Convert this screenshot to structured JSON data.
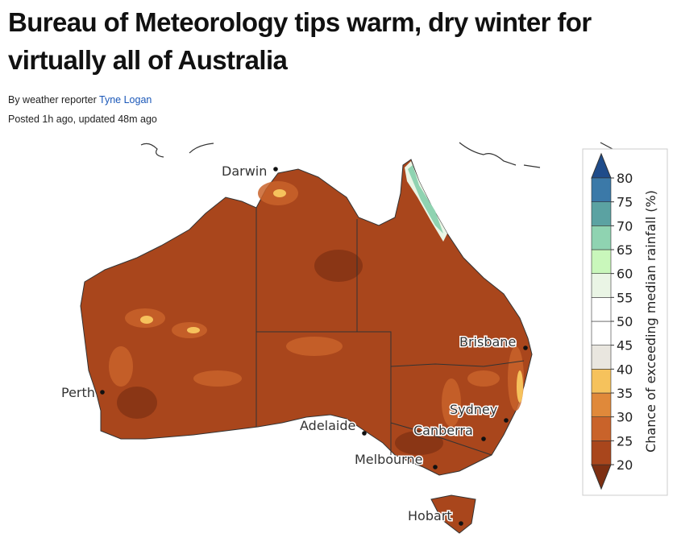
{
  "header": {
    "title": "Bureau of Meteorology tips warm, dry winter for virtually all of Australia",
    "byline_prefix": "By weather reporter",
    "author": "Tyne Logan",
    "timestamp": "Posted 1h ago, updated 48m ago"
  },
  "map": {
    "cities": [
      "Darwin",
      "Brisbane",
      "Perth",
      "Sydney",
      "Adelaide",
      "Canberra",
      "Melbourne",
      "Hobart"
    ],
    "land_color": "#a9461c",
    "legend": {
      "label": "Chance of exceeding median rainfall (%)",
      "ticks": [
        20,
        25,
        30,
        35,
        40,
        45,
        50,
        55,
        60,
        65,
        70,
        75,
        80
      ],
      "colors": [
        "#7d2f12",
        "#a9461c",
        "#c9632a",
        "#e0893a",
        "#f6c25c",
        "#e9e6df",
        "#ffffff",
        "#ffffff",
        "#eaf5e5",
        "#c9f7bb",
        "#8fd3b1",
        "#5ba2a2",
        "#3b79a8",
        "#1f4c8a"
      ]
    }
  }
}
